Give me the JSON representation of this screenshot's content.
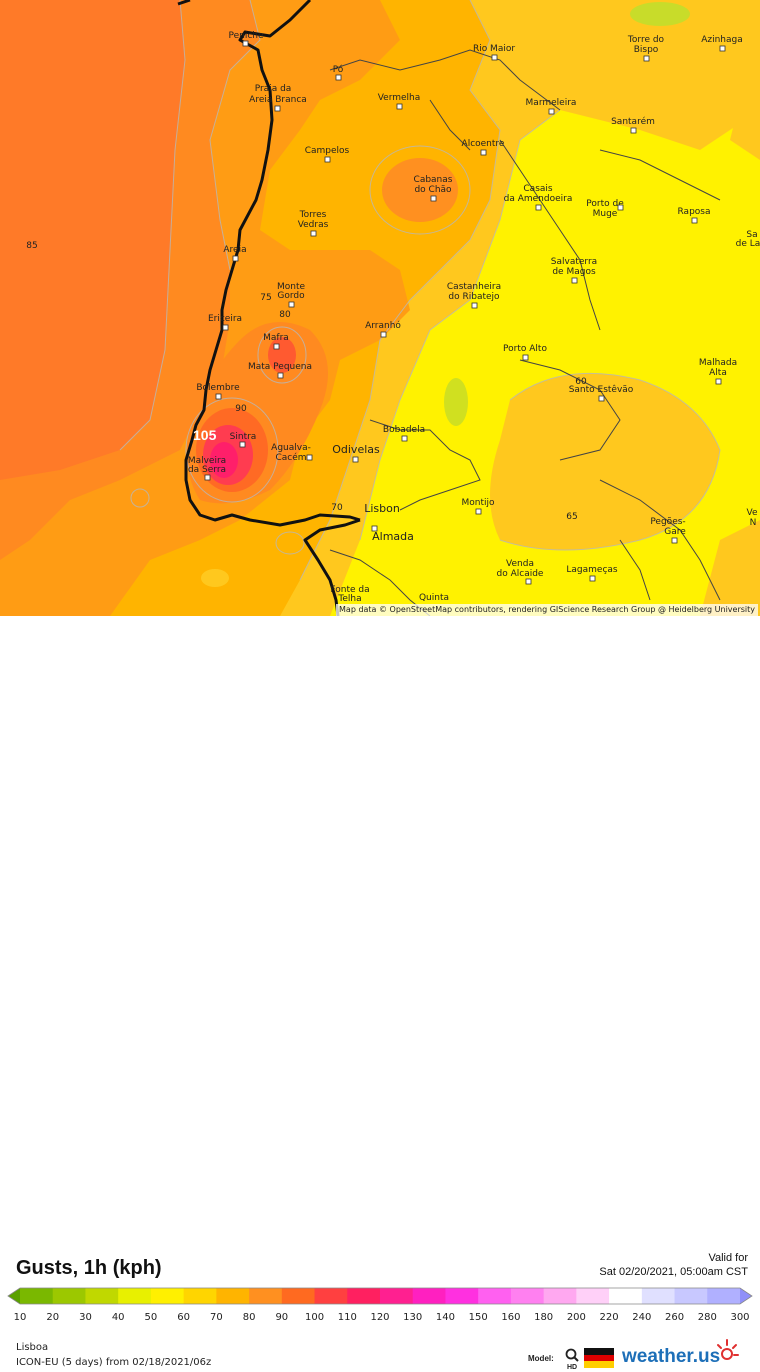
{
  "map": {
    "attribution": "Map data © OpenStreetMap contributors, rendering GIScience Research Group @ Heidelberg University",
    "max_label": "105",
    "places": [
      {
        "name": "Peniche",
        "lon_label": ""
      },
      {
        "name": "Pó"
      },
      {
        "name": "Rio Maior"
      },
      {
        "name": "Torre do"
      },
      {
        "name": "Bispo"
      },
      {
        "name": "Azinhaga"
      },
      {
        "name": "Praia da"
      },
      {
        "name": "Areia Branca"
      },
      {
        "name": "Vermelha"
      },
      {
        "name": "Marmeleira"
      },
      {
        "name": "Santarém"
      },
      {
        "name": "Campelos"
      },
      {
        "name": "Alcoentre"
      },
      {
        "name": "Cabanas"
      },
      {
        "name": "do Chão"
      },
      {
        "name": "Casais"
      },
      {
        "name": "da Amendoeira"
      },
      {
        "name": "Porto de"
      },
      {
        "name": "Muge"
      },
      {
        "name": "Torres"
      },
      {
        "name": "Vedras"
      },
      {
        "name": "Raposa"
      },
      {
        "name": "Areia"
      },
      {
        "name": "Salvaterra"
      },
      {
        "name": "de Magos"
      },
      {
        "name": "Monte"
      },
      {
        "name": "Gordo"
      },
      {
        "name": "Castanheira"
      },
      {
        "name": "do Ribatejo"
      },
      {
        "name": "Ericeira"
      },
      {
        "name": "Arranhó"
      },
      {
        "name": "Mafra"
      },
      {
        "name": "Porto Alto"
      },
      {
        "name": "Mata Pequena"
      },
      {
        "name": "Malhada"
      },
      {
        "name": "Alta"
      },
      {
        "name": "Bolembre"
      },
      {
        "name": "Santo Estêvão"
      },
      {
        "name": "Sintra"
      },
      {
        "name": "Bobadela"
      },
      {
        "name": "Agualva-"
      },
      {
        "name": "Cacém"
      },
      {
        "name": "Odivelas"
      },
      {
        "name": "Malveira"
      },
      {
        "name": "da Serra"
      },
      {
        "name": "Montijo"
      },
      {
        "name": "Lisbon"
      },
      {
        "name": "Pegões-"
      },
      {
        "name": "Gare"
      },
      {
        "name": "Almada"
      },
      {
        "name": "Venda"
      },
      {
        "name": "do Alcaide"
      },
      {
        "name": "Lagameças"
      },
      {
        "name": "Fonte da"
      },
      {
        "name": "Telha"
      },
      {
        "name": "Quinta"
      },
      {
        "name": "Sa"
      },
      {
        "name": "de La"
      },
      {
        "name": "Ve"
      },
      {
        "name": "N"
      }
    ],
    "contour_labels": [
      "85",
      "75",
      "80",
      "90",
      "70",
      "60",
      "65"
    ]
  },
  "legend": {
    "title": "Gusts, 1h (kph)",
    "valid_label": "Valid for",
    "valid_time": "Sat 02/20/2021, 05:00am CST",
    "location": "Lisboa",
    "model_line": "ICON-EU (5 days) from 02/18/2021/06z",
    "model_label": "Model:",
    "brand": "weather.us",
    "hd_label": "HD",
    "scale_ticks": [
      "10",
      "20",
      "30",
      "40",
      "50",
      "60",
      "70",
      "80",
      "90",
      "100",
      "110",
      "120",
      "130",
      "140",
      "150",
      "160",
      "180",
      "200",
      "220",
      "240",
      "260",
      "280",
      "300"
    ],
    "scale_colors": [
      "#5aa000",
      "#7ab800",
      "#9cc800",
      "#c0d800",
      "#e8f000",
      "#fff000",
      "#ffd500",
      "#ffb400",
      "#ff9020",
      "#ff6a20",
      "#ff4040",
      "#ff2060",
      "#ff2090",
      "#ff20c0",
      "#ff30e0",
      "#ff60f0",
      "#ff80f0",
      "#ffa8f0",
      "#ffd0f8",
      "#ffffff",
      "#e0e0ff",
      "#c8c8ff",
      "#b0b0ff",
      "#9090f8"
    ]
  }
}
